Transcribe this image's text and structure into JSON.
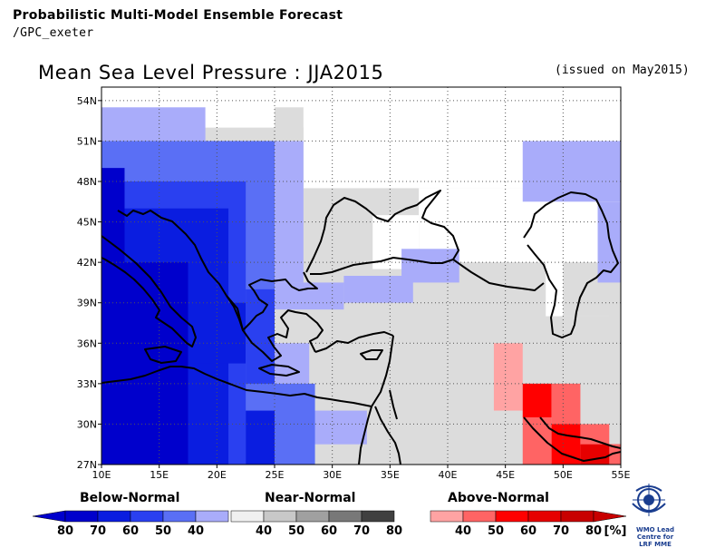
{
  "header": {
    "title": "Probabilistic Multi-Model Ensemble Forecast",
    "subtitle": "/GPC_exeter"
  },
  "map": {
    "title": "Mean Sea Level Pressure : JJA2015",
    "issued": "(issued on May2015)",
    "lon_range": [
      10,
      55
    ],
    "lat_range": [
      27,
      55
    ],
    "lon_ticks": [
      "10E",
      "15E",
      "20E",
      "25E",
      "30E",
      "35E",
      "40E",
      "45E",
      "50E",
      "55E"
    ],
    "lat_ticks": [
      "27N",
      "30N",
      "33N",
      "36N",
      "39N",
      "42N",
      "45N",
      "48N",
      "51N",
      "54N"
    ],
    "grid": true
  },
  "colors": {
    "below_80": "#0000cc",
    "below_70": "#0a1de0",
    "below_60": "#2a40f0",
    "below_50": "#5a6ff5",
    "below_40": "#a9acfa",
    "near": "#dcdcdc",
    "above_40": "#ffa3a3",
    "above_50": "#ff6464",
    "above_60": "#ff0000",
    "above_70": "#e60000",
    "above_80": "#c80000",
    "coast": "#000000"
  },
  "legend": {
    "below": {
      "title": "Below-Normal",
      "labels": [
        "80",
        "70",
        "60",
        "50",
        "40"
      ]
    },
    "near": {
      "title": "Near-Normal",
      "labels": [
        "40",
        "50",
        "60",
        "70",
        "80"
      ]
    },
    "above": {
      "title": "Above-Normal",
      "labels": [
        "40",
        "50",
        "60",
        "70",
        "80"
      ]
    },
    "unit": "[%]"
  },
  "logo": {
    "name": "wmo-lc-lrfmme-logo",
    "text_line1": "WMO Lead Centre for",
    "text_line2": "LRF MME"
  }
}
